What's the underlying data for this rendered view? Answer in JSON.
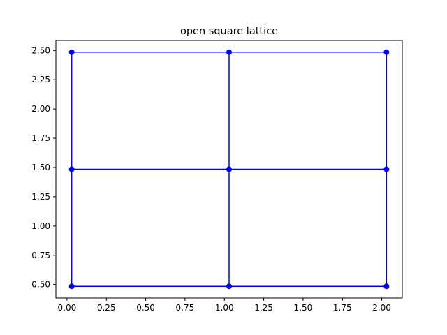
{
  "chart_data": {
    "type": "line",
    "title": "open square lattice",
    "xlabel": "",
    "ylabel": "",
    "xlim": [
      -0.0705,
      2.1305
    ],
    "ylim": [
      0.385,
      2.585
    ],
    "x_ticks": [
      0.0,
      0.25,
      0.5,
      0.75,
      1.0,
      1.25,
      1.5,
      1.75,
      2.0
    ],
    "y_ticks": [
      0.5,
      0.75,
      1.0,
      1.25,
      1.5,
      1.75,
      2.0,
      2.25,
      2.5
    ],
    "x_tick_labels": [
      "0.00",
      "0.25",
      "0.50",
      "0.75",
      "1.00",
      "1.25",
      "1.50",
      "1.75",
      "2.00"
    ],
    "y_tick_labels": [
      "0.50",
      "0.75",
      "1.00",
      "1.25",
      "1.50",
      "1.75",
      "2.00",
      "2.25",
      "2.50"
    ],
    "grid": false,
    "color": "#0000ff",
    "nodes": [
      {
        "x": 0.03,
        "y": 0.485
      },
      {
        "x": 1.03,
        "y": 0.485
      },
      {
        "x": 2.03,
        "y": 0.485
      },
      {
        "x": 0.03,
        "y": 1.485
      },
      {
        "x": 1.03,
        "y": 1.485
      },
      {
        "x": 2.03,
        "y": 1.485
      },
      {
        "x": 0.03,
        "y": 2.485
      },
      {
        "x": 1.03,
        "y": 2.485
      },
      {
        "x": 2.03,
        "y": 2.485
      }
    ],
    "edges": [
      [
        0,
        1
      ],
      [
        1,
        2
      ],
      [
        3,
        4
      ],
      [
        4,
        5
      ],
      [
        6,
        7
      ],
      [
        7,
        8
      ],
      [
        0,
        3
      ],
      [
        3,
        6
      ],
      [
        1,
        4
      ],
      [
        4,
        7
      ],
      [
        2,
        5
      ],
      [
        5,
        8
      ]
    ]
  }
}
